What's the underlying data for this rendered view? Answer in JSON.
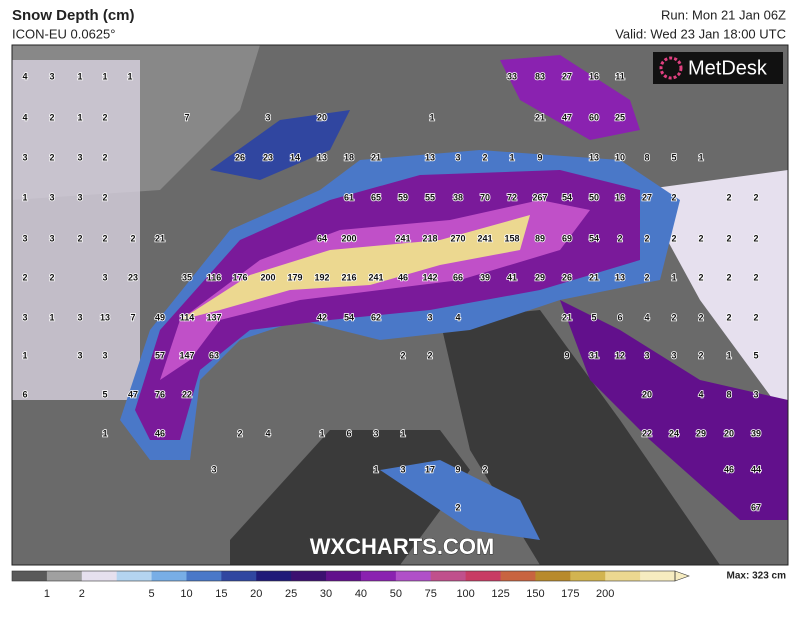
{
  "header": {
    "title": "Snow Depth (cm)",
    "subtitle": "ICON-EU 0.0625°",
    "run": "Run: Mon 21 Jan 06Z",
    "valid": "Valid: Wed 23 Jan 18:00 UTC"
  },
  "logo": "MetDesk",
  "watermark": "WXCHARTS.COM",
  "map": {
    "label_rows": [
      [
        4,
        3,
        1,
        1,
        1,
        33,
        83,
        27,
        16,
        11
      ],
      [
        4,
        2,
        1,
        2,
        7,
        3,
        20,
        1,
        21,
        47,
        60,
        25
      ],
      [
        3,
        2,
        3,
        2,
        26,
        23,
        14,
        13,
        18,
        21,
        13,
        3,
        2,
        1,
        9,
        13,
        10,
        8,
        5,
        1
      ],
      [
        1,
        3,
        3,
        2,
        61,
        65,
        59,
        55,
        38,
        70,
        72,
        267,
        54,
        50,
        16,
        27,
        2,
        2,
        2
      ],
      [
        3,
        3,
        2,
        2,
        2,
        21,
        64,
        200,
        241,
        218,
        270,
        241,
        158,
        89,
        69,
        54,
        2,
        2,
        2,
        2,
        2,
        2
      ],
      [
        2,
        2,
        3,
        23,
        35,
        116,
        176,
        200,
        179,
        192,
        216,
        241,
        46,
        142,
        66,
        39,
        41,
        29,
        26,
        21,
        13,
        2,
        1,
        2,
        2,
        2
      ],
      [
        3,
        1,
        3,
        13,
        7,
        49,
        114,
        137,
        42,
        54,
        62,
        3,
        4,
        21,
        5,
        6,
        4,
        2,
        2,
        2,
        2
      ],
      [
        1,
        3,
        3,
        57,
        147,
        63,
        2,
        2,
        9,
        31,
        12,
        3,
        3,
        2,
        1,
        5
      ],
      [
        6,
        5,
        47,
        76,
        22,
        20,
        4,
        8,
        3
      ],
      [
        1,
        46,
        2,
        4,
        1,
        6,
        3,
        1,
        22,
        24,
        29,
        20,
        39
      ],
      [
        3,
        1,
        3,
        17,
        9,
        2,
        46,
        44
      ],
      [
        2,
        67
      ]
    ]
  },
  "legend": {
    "ticks": [
      1,
      2,
      5,
      10,
      15,
      20,
      25,
      30,
      40,
      50,
      75,
      100,
      125,
      150,
      175,
      200
    ],
    "colors": [
      "#5a5a5a",
      "#a0a0a0",
      "#e6e0ee",
      "#b4d4f0",
      "#78aee6",
      "#4a78c8",
      "#3046a0",
      "#201a78",
      "#3c1070",
      "#62108c",
      "#8a22b0",
      "#b050c8",
      "#c0508c",
      "#c83c64",
      "#c86440",
      "#b88a2c",
      "#d2b450",
      "#ecd890",
      "#f6ecc0"
    ],
    "max": "Max: 323 cm"
  }
}
